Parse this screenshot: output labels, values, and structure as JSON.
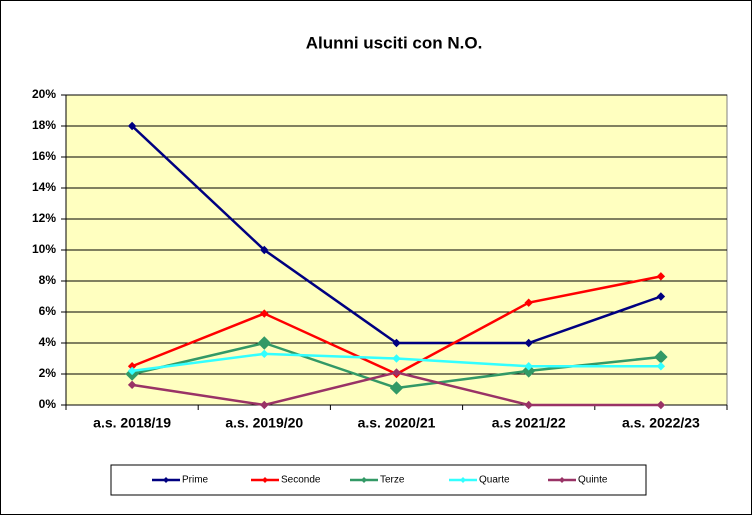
{
  "chart_data": {
    "type": "line",
    "title": "Alunni usciti con N.O.",
    "categories": [
      "a.s. 2018/19",
      "a.s. 2019/20",
      "a.s. 2020/21",
      "a.s  2021/22",
      "a.s. 2022/23"
    ],
    "series": [
      {
        "name": "Prime",
        "color": "#000080",
        "values": [
          18,
          10,
          4,
          4,
          7
        ]
      },
      {
        "name": "Seconde",
        "color": "#ff0000",
        "values": [
          2.5,
          5.9,
          2.0,
          6.6,
          8.3
        ]
      },
      {
        "name": "Terze",
        "color": "#339966",
        "values": [
          2.0,
          4.0,
          1.1,
          2.2,
          3.1
        ]
      },
      {
        "name": "Quarte",
        "color": "#33ffff",
        "values": [
          2.2,
          3.3,
          3.0,
          2.5,
          2.5
        ]
      },
      {
        "name": "Quinte",
        "color": "#993366",
        "values": [
          1.3,
          0,
          2.1,
          0,
          0
        ]
      }
    ],
    "ylim": [
      0,
      20
    ],
    "yticks": [
      {
        "value": 0,
        "label": "0%"
      },
      {
        "value": 2,
        "label": "2%"
      },
      {
        "value": 4,
        "label": "4%"
      },
      {
        "value": 6,
        "label": "6%"
      },
      {
        "value": 8,
        "label": "8%"
      },
      {
        "value": 10,
        "label": "10%"
      },
      {
        "value": 12,
        "label": "12%"
      },
      {
        "value": 14,
        "label": "14%"
      },
      {
        "value": 16,
        "label": "16%"
      },
      {
        "value": 18,
        "label": "18%"
      },
      {
        "value": 20,
        "label": "20%"
      }
    ],
    "grid": true,
    "legend": "bottom"
  }
}
